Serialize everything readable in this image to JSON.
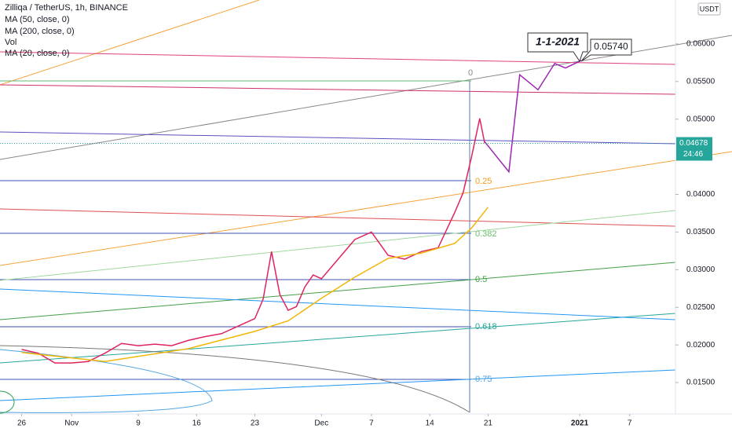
{
  "chart_data": {
    "type": "line",
    "title": "Zilliqa / TetherUS, 1h, BINANCE",
    "indicators": [
      "MA (50, close, 0)",
      "MA (200, close, 0)",
      "Vol",
      "MA (20, close, 0)"
    ],
    "currency": "USDT",
    "xlim": [
      -2.6,
      78.5
    ],
    "xticks": [
      {
        "value": 0,
        "label": "26"
      },
      {
        "value": 6,
        "label": "Nov"
      },
      {
        "value": 14,
        "label": "9"
      },
      {
        "value": 21,
        "label": "16"
      },
      {
        "value": 28,
        "label": "23"
      },
      {
        "value": 36,
        "label": "Dec"
      },
      {
        "value": 42,
        "label": "7"
      },
      {
        "value": 49,
        "label": "14"
      },
      {
        "value": 56,
        "label": "21"
      },
      {
        "value": 67,
        "label": "2021"
      },
      {
        "value": 73,
        "label": "7"
      }
    ],
    "ylim": [
      0.01104,
      0.06583
    ],
    "yticks": [
      {
        "value": 0.015,
        "label": "0.01500"
      },
      {
        "value": 0.02,
        "label": "0.02000"
      },
      {
        "value": 0.025,
        "label": "0.02500"
      },
      {
        "value": 0.03,
        "label": "0.03000"
      },
      {
        "value": 0.035,
        "label": "0.03500"
      },
      {
        "value": 0.04,
        "label": "0.04000"
      },
      {
        "value": 0.05,
        "label": "0.05000"
      },
      {
        "value": 0.055,
        "label": "0.05500"
      },
      {
        "value": 0.06,
        "label": "0.06000"
      }
    ],
    "series": [
      {
        "color": "#e0245e",
        "x": [
          0,
          2,
          4,
          6,
          8,
          10,
          12,
          14,
          16,
          18,
          20,
          22,
          24,
          26,
          28,
          29,
          30,
          31,
          32,
          33,
          34,
          35,
          36,
          38,
          40,
          42,
          44,
          46,
          48,
          50,
          52,
          53,
          54,
          55,
          55.6
        ],
        "values": [
          0.0194,
          0.0189,
          0.0176,
          0.0176,
          0.0178,
          0.0189,
          0.0202,
          0.0199,
          0.0201,
          0.0199,
          0.0206,
          0.0211,
          0.0215,
          0.0225,
          0.0235,
          0.0261,
          0.0324,
          0.0267,
          0.0246,
          0.0251,
          0.0277,
          0.0293,
          0.0288,
          0.0314,
          0.034,
          0.035,
          0.0319,
          0.0314,
          0.0324,
          0.0329,
          0.0376,
          0.0402,
          0.0449,
          0.0501,
          0.0468
        ]
      },
      {
        "color": "#f2b705",
        "x": [
          0,
          10,
          20,
          28,
          32,
          36,
          40,
          44,
          48,
          52,
          54,
          56
        ],
        "values": [
          0.019,
          0.0178,
          0.0195,
          0.0218,
          0.0232,
          0.0262,
          0.029,
          0.0315,
          0.0322,
          0.0335,
          0.0355,
          0.0383
        ]
      },
      {
        "color": "#9c27b0",
        "x": [
          55.6,
          58.5,
          59.8,
          62.0,
          64.0,
          65.3,
          67.2
        ],
        "values": [
          0.047,
          0.043,
          0.0559,
          0.0539,
          0.0574,
          0.0568,
          0.0578
        ]
      }
    ],
    "last_price": 0.04678,
    "last_price_label": "0.04678",
    "countdown": "24:46",
    "fib_labels": [
      "0",
      "0.25",
      "0.382",
      "0.5",
      "0.618",
      "0.75"
    ],
    "annotation_date": "1-1-2021",
    "annotation_price": "0.05740"
  }
}
